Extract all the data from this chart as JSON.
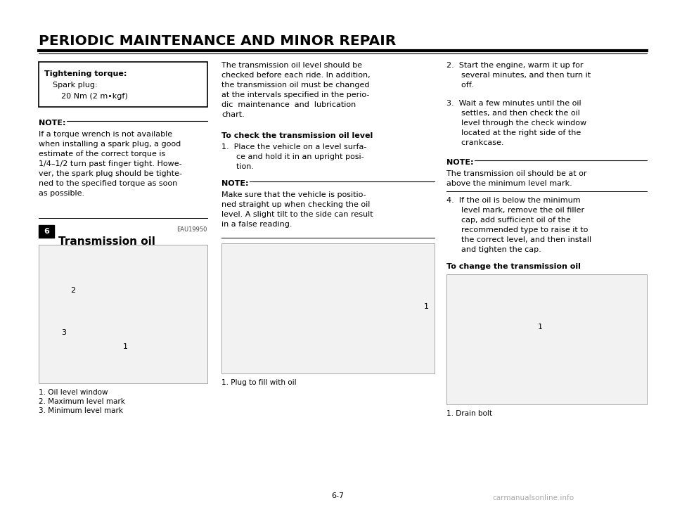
{
  "title": "PERIODIC MAINTENANCE AND MINOR REPAIR",
  "page_bg": "#ffffff",
  "page_number": "6-7",
  "chapter_num": "6",
  "section_label": "EAU19950",
  "section_title": "Transmission oil",
  "torque_box_title": "Tightening torque:",
  "torque_box_line2": "Spark plug:",
  "torque_box_line3": "20 Nm (2 m•kgf)",
  "note1_label": "NOTE:",
  "note1_text": "If a torque wrench is not available\nwhen installing a spark plug, a good\nestimate of the correct torque is\n1/4–1/2 turn past finger tight. Howe-\nver, the spark plug should be tighte-\nned to the specified torque as soon\nas possible.",
  "col2_para1": "The transmission oil level should be\nchecked before each ride. In addition,\nthe transmission oil must be changed\nat the intervals specified in the perio-\ndic  maintenance  and  lubrication\nchart.",
  "col2_heading": "To check the transmission oil level",
  "col2_item1": "1.  Place the vehicle on a level surfa-\n      ce and hold it in an upright posi-\n      tion.",
  "note2_label": "NOTE:",
  "note2_text": "Make sure that the vehicle is positio-\nned straight up when checking the oil\nlevel. A slight tilt to the side can result\nin a false reading.",
  "img1_caption1": "1. Oil level window",
  "img1_caption2": "2. Maximum level mark",
  "img1_caption3": "3. Minimum level mark",
  "img2_caption": "1. Plug to fill with oil",
  "col3_item2": "2.  Start the engine, warm it up for\n      several minutes, and then turn it\n      off.",
  "col3_item3": "3.  Wait a few minutes until the oil\n      settles, and then check the oil\n      level through the check window\n      located at the right side of the\n      crankcase.",
  "note3_label": "NOTE:",
  "note3_text": "The transmission oil should be at or\nabove the minimum level mark.",
  "col3_item4": "4.  If the oil is below the minimum\n      level mark, remove the oil filler\n      cap, add sufficient oil of the\n      recommended type to raise it to\n      the correct level, and then install\n      and tighten the cap.",
  "col3_heading2": "To change the transmission oil",
  "img3_caption": "1. Drain bolt",
  "watermark": "carmanualsonline.info"
}
